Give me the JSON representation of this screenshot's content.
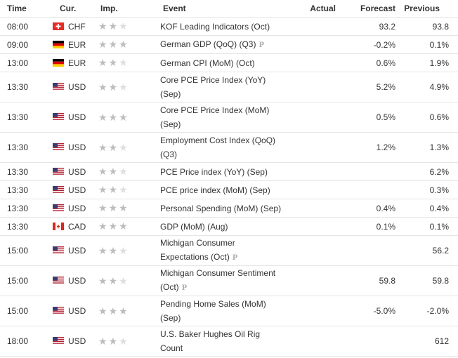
{
  "headers": {
    "time": "Time",
    "cur": "Cur.",
    "imp": "Imp.",
    "event": "Event",
    "actual": "Actual",
    "forecast": "Forecast",
    "previous": "Previous"
  },
  "rows": [
    {
      "time": "08:00",
      "flag": "ch",
      "cur": "CHF",
      "stars": 2,
      "event": "KOF Leading Indicators (Oct)",
      "lines": 1,
      "prelim": false,
      "actual": "",
      "forecast": "93.2",
      "previous": "93.8"
    },
    {
      "time": "09:00",
      "flag": "de",
      "cur": "EUR",
      "stars": 3,
      "event": "German GDP (QoQ) (Q3)",
      "lines": 1,
      "prelim": true,
      "actual": "",
      "forecast": "-0.2%",
      "previous": "0.1%"
    },
    {
      "time": "13:00",
      "flag": "de",
      "cur": "EUR",
      "stars": 2,
      "event": "German CPI (MoM) (Oct)",
      "lines": 1,
      "prelim": false,
      "actual": "",
      "forecast": "0.6%",
      "previous": "1.9%"
    },
    {
      "time": "13:30",
      "flag": "us",
      "cur": "USD",
      "stars": 2,
      "event": "Core PCE Price Index (YoY) (Sep)",
      "lines": 2,
      "prelim": false,
      "actual": "",
      "forecast": "5.2%",
      "previous": "4.9%"
    },
    {
      "time": "13:30",
      "flag": "us",
      "cur": "USD",
      "stars": 3,
      "event": "Core PCE Price Index (MoM) (Sep)",
      "lines": 2,
      "prelim": false,
      "actual": "",
      "forecast": "0.5%",
      "previous": "0.6%"
    },
    {
      "time": "13:30",
      "flag": "us",
      "cur": "USD",
      "stars": 2,
      "event": "Employment Cost Index (QoQ) (Q3)",
      "lines": 2,
      "prelim": false,
      "actual": "",
      "forecast": "1.2%",
      "previous": "1.3%"
    },
    {
      "time": "13:30",
      "flag": "us",
      "cur": "USD",
      "stars": 2,
      "event": "PCE Price index (YoY) (Sep)",
      "lines": 1,
      "prelim": false,
      "actual": "",
      "forecast": "",
      "previous": "6.2%"
    },
    {
      "time": "13:30",
      "flag": "us",
      "cur": "USD",
      "stars": 2,
      "event": "PCE price index (MoM) (Sep)",
      "lines": 1,
      "prelim": false,
      "actual": "",
      "forecast": "",
      "previous": "0.3%"
    },
    {
      "time": "13:30",
      "flag": "us",
      "cur": "USD",
      "stars": 3,
      "event": "Personal Spending (MoM) (Sep)",
      "lines": 1,
      "prelim": false,
      "actual": "",
      "forecast": "0.4%",
      "previous": "0.4%"
    },
    {
      "time": "13:30",
      "flag": "ca",
      "cur": "CAD",
      "stars": 3,
      "event": "GDP (MoM) (Aug)",
      "lines": 1,
      "prelim": false,
      "actual": "",
      "forecast": "0.1%",
      "previous": "0.1%"
    },
    {
      "time": "15:00",
      "flag": "us",
      "cur": "USD",
      "stars": 2,
      "event": "Michigan Consumer Expectations (Oct)",
      "lines": 2,
      "prelim": true,
      "actual": "",
      "forecast": "",
      "previous": "56.2"
    },
    {
      "time": "15:00",
      "flag": "us",
      "cur": "USD",
      "stars": 2,
      "event": "Michigan Consumer Sentiment (Oct)",
      "lines": 2,
      "prelim": true,
      "actual": "",
      "forecast": "59.8",
      "previous": "59.8"
    },
    {
      "time": "15:00",
      "flag": "us",
      "cur": "USD",
      "stars": 3,
      "event": "Pending Home Sales (MoM) (Sep)",
      "lines": 2,
      "prelim": false,
      "actual": "",
      "forecast": "-5.0%",
      "previous": "-2.0%"
    },
    {
      "time": "18:00",
      "flag": "us",
      "cur": "USD",
      "stars": 2,
      "event": "U.S. Baker Hughes Oil Rig Count",
      "lines": 2,
      "prelim": false,
      "actual": "",
      "forecast": "",
      "previous": "612"
    }
  ],
  "prelim_mark": "P",
  "colors": {
    "star_on": "#bdbdbd",
    "star_off": "#dedede",
    "border": "#e5e5e5",
    "text": "#333333"
  }
}
